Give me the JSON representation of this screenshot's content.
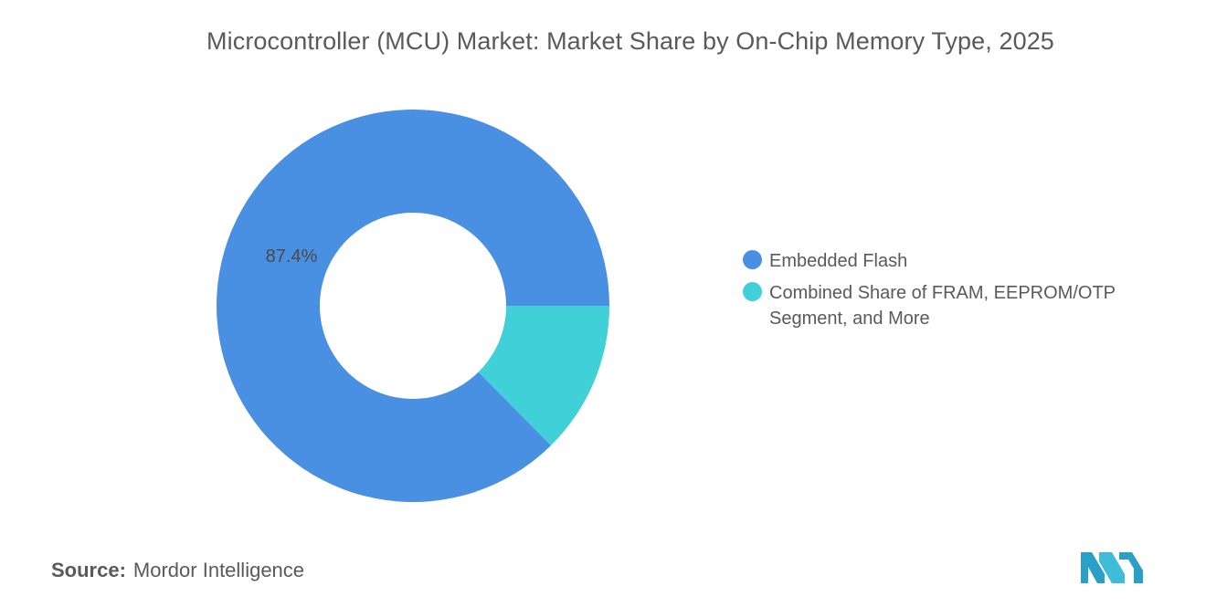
{
  "chart_data": {
    "type": "pie",
    "title": "Microcontroller (MCU) Market: Market Share by On-Chip Memory Type, 2025",
    "donut": true,
    "categories": [
      "Embedded Flash",
      "Combined Share of FRAM, EEPROM/OTP Segment, and More"
    ],
    "values": [
      87.4,
      12.6
    ],
    "colors": [
      "#4a90e2",
      "#3fd0d8"
    ],
    "data_labels": [
      "87.4%",
      ""
    ],
    "legend_position": "right"
  },
  "source": {
    "label": "Source:",
    "value": "Mordor Intelligence"
  },
  "logo": {
    "icon": "mordor-intelligence-logo",
    "color": "#2a9fc7"
  }
}
